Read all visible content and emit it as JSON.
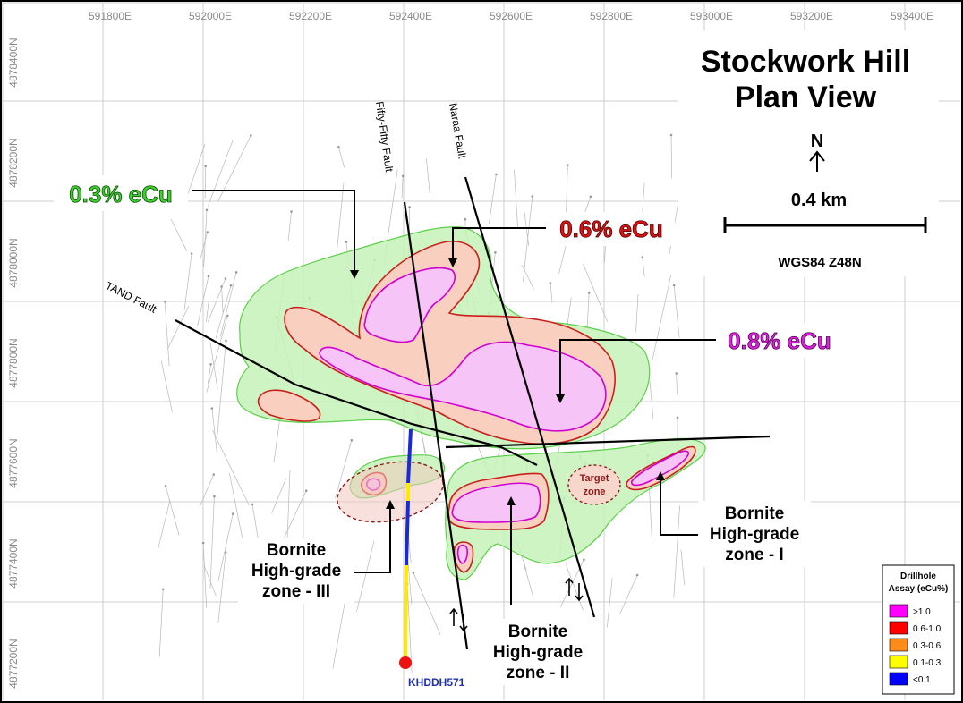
{
  "title_line1": "Stockwork Hill",
  "title_line2": "Plan View",
  "north": {
    "letter": "N",
    "icon": "north-arrow-icon"
  },
  "scale_bar": {
    "label": "0.4 km"
  },
  "crs": "WGS84 Z48N",
  "easting_ticks": [
    "591800E",
    "592000E",
    "592200E",
    "592400E",
    "592600E",
    "592800E",
    "593000E",
    "593200E",
    "593400E"
  ],
  "northing_ticks": [
    "4878400N",
    "4878200N",
    "4878000N",
    "4877800N",
    "4877600N",
    "4877400N",
    "4877200N"
  ],
  "faults": {
    "fifty_fifty": "Fifty-Fifty Fault",
    "naraa": "Naraa Fault",
    "tand": "TAND Fault"
  },
  "grade_labels": {
    "low": "0.3% eCu",
    "mid": "0.6% eCu",
    "high": "0.8% eCu"
  },
  "zones": {
    "zone1": {
      "line1": "Bornite",
      "line2": "High-grade",
      "line3": "zone - I"
    },
    "zone2": {
      "line1": "Bornite",
      "line2": "High-grade",
      "line3": "zone - II"
    },
    "zone3": {
      "line1": "Bornite",
      "line2": "High-grade",
      "line3": "zone - III"
    },
    "target": {
      "line1": "Target",
      "line2": "zone"
    }
  },
  "drillhole": {
    "name": "KHDDH571"
  },
  "legend": {
    "title_line1": "Drillhole",
    "title_line2": "Assay (eCu%)",
    "items": [
      {
        "label": ">1.0",
        "color": "#ff00ff"
      },
      {
        "label": "0.6-1.0",
        "color": "#ff0000"
      },
      {
        "label": "0.3-0.6",
        "color": "#ff8c1a"
      },
      {
        "label": "0.1-0.3",
        "color": "#ffff00"
      },
      {
        "label": "<0.1",
        "color": "#0000ff"
      }
    ]
  },
  "colors": {
    "low_grade_fill": "#c6f2b8",
    "low_grade_stroke": "#5ccf4a",
    "mid_grade_fill": "#f9cfc0",
    "mid_grade_stroke": "#c8201a",
    "high_grade_fill": "#f7c4f7",
    "high_grade_stroke": "#d000d0",
    "drillhole_label": "#1f2fb0"
  }
}
